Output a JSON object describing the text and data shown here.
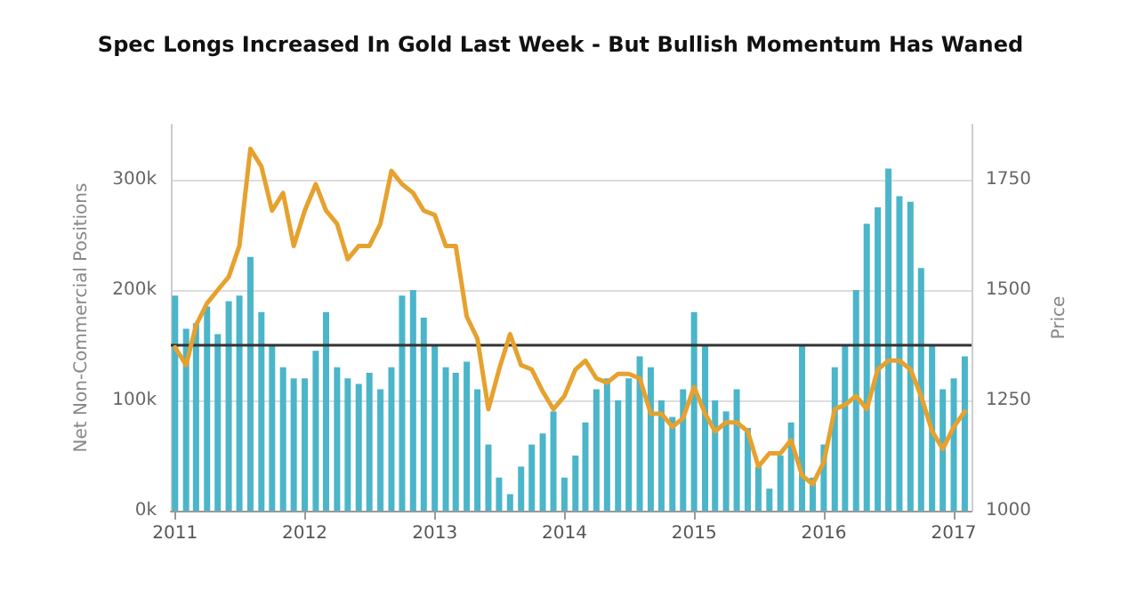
{
  "chart_data": {
    "type": "bar",
    "title": "Spec Longs Increased In Gold Last Week - But Bullish Momentum Has Waned",
    "ylabel": "Net Non-Commercial Positions",
    "y2label": "Price",
    "x": [
      "2011-01",
      "2011-02",
      "2011-03",
      "2011-04",
      "2011-05",
      "2011-06",
      "2011-07",
      "2011-08",
      "2011-09",
      "2011-10",
      "2011-11",
      "2011-12",
      "2012-01",
      "2012-02",
      "2012-03",
      "2012-04",
      "2012-05",
      "2012-06",
      "2012-07",
      "2012-08",
      "2012-09",
      "2012-10",
      "2012-11",
      "2012-12",
      "2013-01",
      "2013-02",
      "2013-03",
      "2013-04",
      "2013-05",
      "2013-06",
      "2013-07",
      "2013-08",
      "2013-09",
      "2013-10",
      "2013-11",
      "2013-12",
      "2014-01",
      "2014-02",
      "2014-03",
      "2014-04",
      "2014-05",
      "2014-06",
      "2014-07",
      "2014-08",
      "2014-09",
      "2014-10",
      "2014-11",
      "2014-12",
      "2015-01",
      "2015-02",
      "2015-03",
      "2015-04",
      "2015-05",
      "2015-06",
      "2015-07",
      "2015-08",
      "2015-09",
      "2015-10",
      "2015-11",
      "2015-12",
      "2016-01",
      "2016-02",
      "2016-03",
      "2016-04",
      "2016-05",
      "2016-06",
      "2016-07",
      "2016-08",
      "2016-09",
      "2016-10",
      "2016-11",
      "2016-12",
      "2017-01",
      "2017-02"
    ],
    "series": [
      {
        "color": "#4bb5c9",
        "values": [
          195000,
          165000,
          170000,
          185000,
          160000,
          190000,
          195000,
          230000,
          180000,
          150000,
          130000,
          120000,
          120000,
          145000,
          180000,
          130000,
          120000,
          115000,
          125000,
          110000,
          130000,
          195000,
          200000,
          175000,
          150000,
          130000,
          125000,
          135000,
          110000,
          60000,
          30000,
          15000,
          40000,
          60000,
          70000,
          90000,
          30000,
          50000,
          80000,
          110000,
          120000,
          100000,
          120000,
          140000,
          130000,
          100000,
          85000,
          110000,
          180000,
          150000,
          100000,
          90000,
          110000,
          75000,
          40000,
          20000,
          50000,
          80000,
          150000,
          30000,
          60000,
          130000,
          150000,
          200000,
          260000,
          275000,
          310000,
          285000,
          280000,
          220000,
          150000,
          110000,
          120000,
          140000
        ]
      },
      {
        "type": "line",
        "axis": "y2",
        "color": "#e6a12e",
        "values": [
          1370,
          1330,
          1420,
          1470,
          1500,
          1530,
          1600,
          1820,
          1780,
          1680,
          1720,
          1600,
          1680,
          1740,
          1680,
          1650,
          1570,
          1600,
          1600,
          1650,
          1770,
          1740,
          1720,
          1680,
          1670,
          1600,
          1600,
          1440,
          1390,
          1230,
          1320,
          1400,
          1330,
          1320,
          1270,
          1230,
          1260,
          1320,
          1340,
          1300,
          1290,
          1310,
          1310,
          1300,
          1220,
          1220,
          1190,
          1210,
          1280,
          1220,
          1180,
          1200,
          1200,
          1180,
          1100,
          1130,
          1130,
          1160,
          1080,
          1060,
          1110,
          1230,
          1240,
          1260,
          1230,
          1320,
          1340,
          1340,
          1320,
          1260,
          1180,
          1140,
          1190,
          1225
        ]
      }
    ],
    "xlim": [
      "2010-12-20",
      "2017-02-20"
    ],
    "xticks": [
      "2011",
      "2012",
      "2013",
      "2014",
      "2015",
      "2016",
      "2017"
    ],
    "ylim": [
      0,
      350000
    ],
    "yticks": [
      {
        "value": 0,
        "label": "0k"
      },
      {
        "value": 100000,
        "label": "100k"
      },
      {
        "value": 200000,
        "label": "200k"
      },
      {
        "value": 300000,
        "label": "300k"
      }
    ],
    "y2lim": [
      1000,
      1875
    ],
    "y2ticks": [
      1000,
      1250,
      1500,
      1750
    ],
    "ref_lines": [
      {
        "axis": "y",
        "value": 150000,
        "color": "#333333"
      }
    ],
    "grid": "y",
    "line_style": "solid",
    "marker": "none"
  }
}
